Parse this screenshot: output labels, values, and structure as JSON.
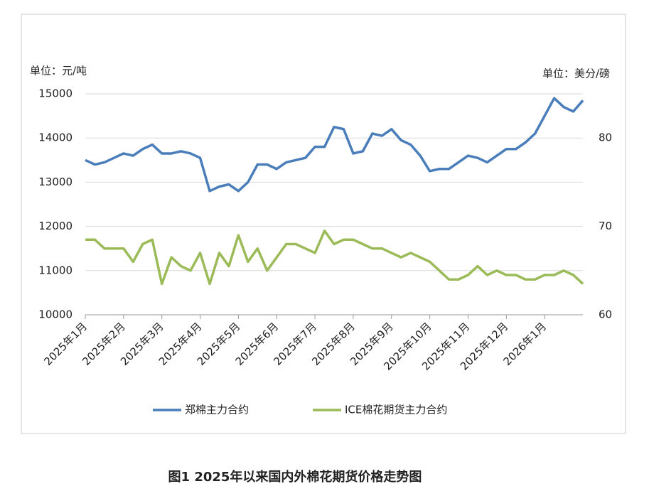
{
  "chart_data": {
    "type": "line",
    "title": "图1 2025年以来国内外棉花期货价格走势图",
    "y_unit_label": "单位：元/吨",
    "y2_unit_label": "单位：美分/磅",
    "categories": [
      "2025年1月",
      null,
      null,
      null,
      "2025年2月",
      null,
      null,
      null,
      "2025年3月",
      null,
      null,
      null,
      "2025年4月",
      null,
      null,
      null,
      "2025年5月",
      null,
      null,
      null,
      "2025年6月",
      null,
      null,
      null,
      "2025年7月",
      null,
      null,
      null,
      "2025年8月",
      null,
      null,
      null,
      "2025年9月",
      null,
      null,
      null,
      "2025年10月",
      null,
      null,
      null,
      "2025年11月",
      null,
      null,
      null,
      "2025年12月",
      null,
      null,
      null,
      "2026年1月",
      null,
      null,
      null,
      null
    ],
    "series": [
      {
        "name": "郑棉主力合约",
        "color": "#4a7ebb",
        "axis": "y",
        "values": [
          13500,
          13400,
          13450,
          13550,
          13650,
          13600,
          13750,
          13850,
          13650,
          13650,
          13700,
          13650,
          13550,
          12800,
          12900,
          12950,
          12800,
          13000,
          13400,
          13400,
          13300,
          13450,
          13500,
          13550,
          13800,
          13800,
          14250,
          14200,
          13650,
          13700,
          14100,
          14050,
          14200,
          13950,
          13850,
          13600,
          13250,
          13300,
          13300,
          13450,
          13600,
          13550,
          13450,
          13600,
          13750,
          13750,
          13900,
          14100,
          14500,
          14900,
          14700,
          14600,
          14850
        ]
      },
      {
        "name": "ICE棉花期货主力合约",
        "color": "#9bbb59",
        "axis": "y2",
        "values": [
          68.5,
          68.5,
          67.5,
          67.5,
          67.5,
          66,
          68,
          68.5,
          63.5,
          66.5,
          65.5,
          65,
          67,
          63.5,
          67,
          65.5,
          69,
          66,
          67.5,
          65,
          66.5,
          68,
          68,
          67.5,
          67,
          69.5,
          68,
          68.5,
          68.5,
          68,
          67.5,
          67.5,
          67,
          66.5,
          67,
          66.5,
          66,
          65,
          64,
          64,
          64.5,
          65.5,
          64.5,
          65,
          64.5,
          64.5,
          64,
          64,
          64.5,
          64.5,
          65,
          64.5,
          63.5
        ]
      }
    ],
    "ylim": [
      10000,
      15000
    ],
    "yticks": [
      10000,
      11000,
      12000,
      13000,
      14000,
      15000
    ],
    "y2lim": [
      60,
      85
    ],
    "y2ticks": [
      60,
      70,
      80
    ],
    "grid": true,
    "legend": "bottom"
  }
}
